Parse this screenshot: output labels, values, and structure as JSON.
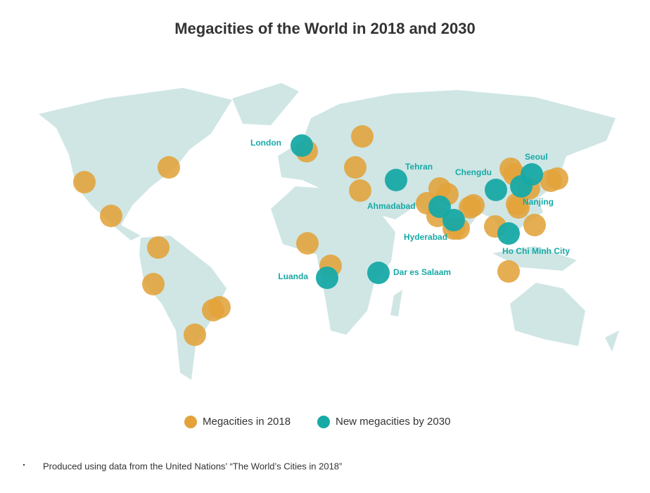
{
  "title": "Megacities of the World in 2018 and 2030",
  "new_megacities": [
    {
      "label": "London"
    },
    {
      "label": "Tehran"
    },
    {
      "label": "Chengdu"
    },
    {
      "label": "Seoul"
    },
    {
      "label": "Nanjing"
    },
    {
      "label": "Ahmadabad"
    },
    {
      "label": "Hyderabad"
    },
    {
      "label": "Ho Chi Minh City"
    },
    {
      "label": "Luanda"
    },
    {
      "label": "Dar es Salaam"
    }
  ],
  "legend": [
    {
      "label": "Megacities in 2018",
      "color": "#e3a33a"
    },
    {
      "label": "New megacities by 2030",
      "color": "#17a9a6"
    }
  ],
  "footnote": "Produced using data from the United Nations’ “The World’s Cities in 2018”"
}
